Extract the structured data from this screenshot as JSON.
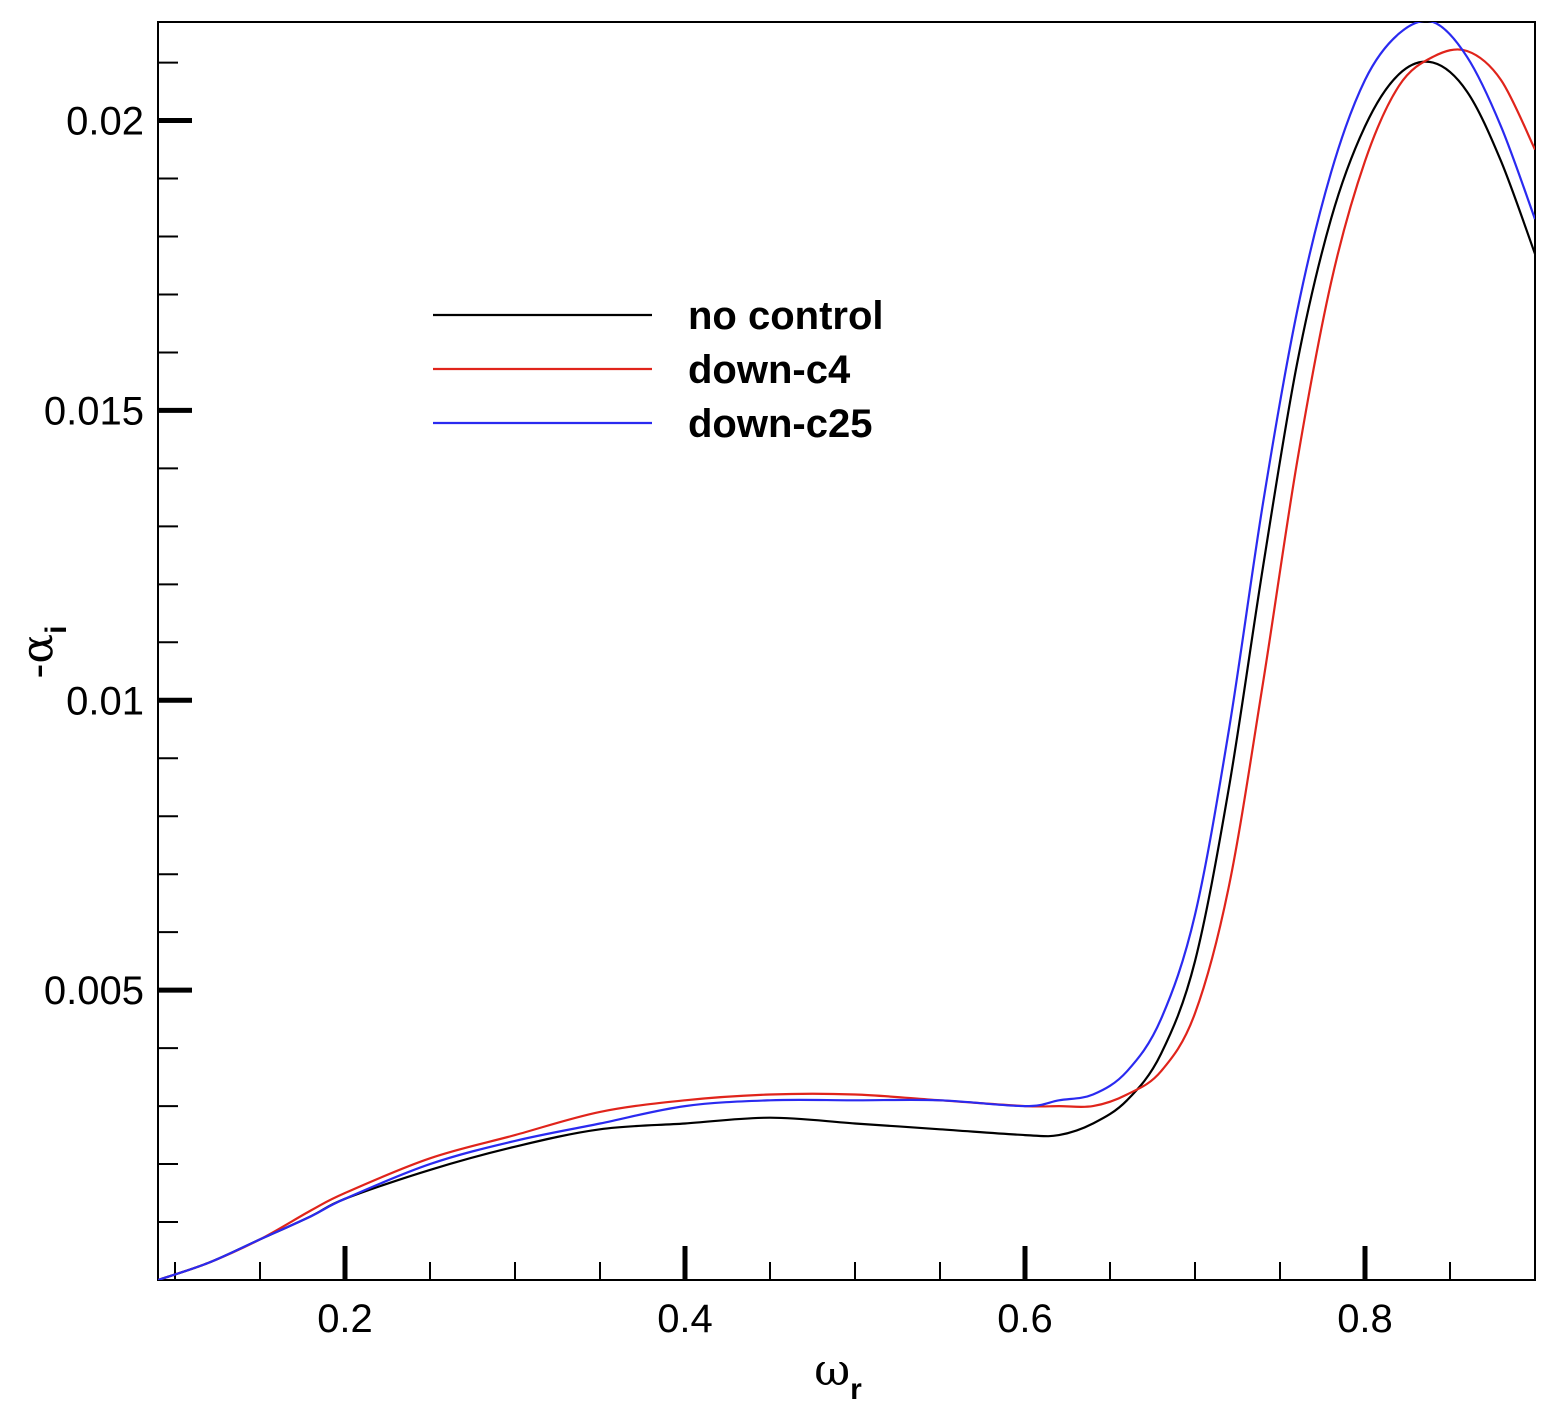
{
  "chart_data": {
    "type": "line",
    "title": "",
    "xlabel": {
      "symbol": "ω",
      "subscript": "r"
    },
    "ylabel": {
      "symbol": "-α",
      "subscript": "i"
    },
    "xlim": [
      0.09,
      0.9
    ],
    "ylim": [
      0.0,
      0.0217
    ],
    "x_major_ticks": [
      0.2,
      0.4,
      0.6,
      0.8
    ],
    "x_tick_labels": [
      "0.2",
      "0.4",
      "0.6",
      "0.8"
    ],
    "x_minor_step": 0.05,
    "y_major_ticks": [
      0.005,
      0.01,
      0.015,
      0.02
    ],
    "y_tick_labels": [
      "0.005",
      "0.01",
      "0.015",
      "0.02"
    ],
    "y_minor_step": 0.001,
    "grid": false,
    "legend_position": "upper-center-left",
    "series": [
      {
        "name": "no control",
        "color": "#000000",
        "x": [
          0.09,
          0.12,
          0.15,
          0.18,
          0.2,
          0.25,
          0.3,
          0.35,
          0.4,
          0.45,
          0.5,
          0.55,
          0.6,
          0.62,
          0.64,
          0.66,
          0.68,
          0.7,
          0.72,
          0.74,
          0.76,
          0.78,
          0.8,
          0.82,
          0.84,
          0.86,
          0.88,
          0.9
        ],
        "y": [
          0.0,
          0.0003,
          0.0007,
          0.0011,
          0.0014,
          0.0019,
          0.0023,
          0.0026,
          0.0027,
          0.0028,
          0.0027,
          0.0026,
          0.0025,
          0.0025,
          0.0027,
          0.0031,
          0.0039,
          0.0055,
          0.0085,
          0.0123,
          0.0158,
          0.0183,
          0.0199,
          0.0208,
          0.021,
          0.0205,
          0.0193,
          0.0177
        ]
      },
      {
        "name": "down-c4",
        "color": "#e0241b",
        "x": [
          0.09,
          0.12,
          0.15,
          0.18,
          0.2,
          0.25,
          0.3,
          0.35,
          0.4,
          0.45,
          0.5,
          0.55,
          0.6,
          0.62,
          0.64,
          0.66,
          0.68,
          0.7,
          0.72,
          0.74,
          0.76,
          0.78,
          0.8,
          0.82,
          0.84,
          0.86,
          0.88,
          0.9
        ],
        "y": [
          0.0,
          0.0003,
          0.0007,
          0.0012,
          0.0015,
          0.0021,
          0.0025,
          0.0029,
          0.0031,
          0.0032,
          0.0032,
          0.0031,
          0.003,
          0.003,
          0.003,
          0.0032,
          0.0036,
          0.0046,
          0.0068,
          0.0103,
          0.0141,
          0.0172,
          0.0193,
          0.0206,
          0.0211,
          0.0212,
          0.0207,
          0.0195
        ]
      },
      {
        "name": "down-c25",
        "color": "#2a2af0",
        "x": [
          0.09,
          0.12,
          0.15,
          0.18,
          0.2,
          0.25,
          0.3,
          0.35,
          0.4,
          0.45,
          0.5,
          0.55,
          0.6,
          0.62,
          0.64,
          0.66,
          0.68,
          0.7,
          0.72,
          0.74,
          0.76,
          0.78,
          0.8,
          0.82,
          0.84,
          0.86,
          0.88,
          0.9
        ],
        "y": [
          0.0,
          0.0003,
          0.0007,
          0.0011,
          0.0014,
          0.002,
          0.0024,
          0.0027,
          0.003,
          0.0031,
          0.0031,
          0.0031,
          0.003,
          0.0031,
          0.0032,
          0.0036,
          0.0045,
          0.0063,
          0.0095,
          0.0134,
          0.0167,
          0.0191,
          0.0207,
          0.0215,
          0.0217,
          0.0211,
          0.0199,
          0.0183
        ]
      }
    ]
  }
}
